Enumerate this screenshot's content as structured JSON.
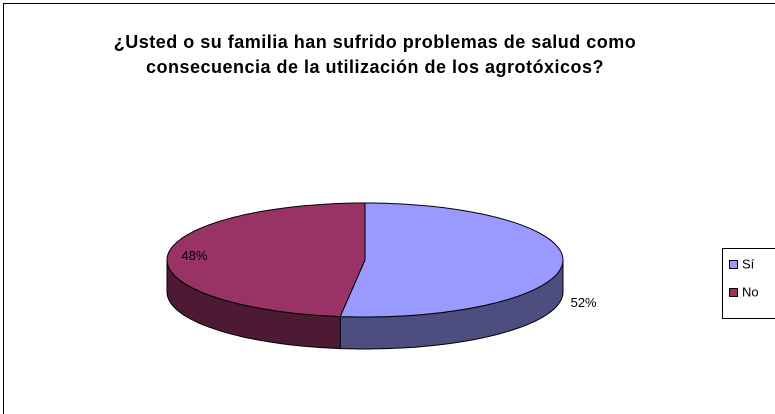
{
  "chart_data": {
    "type": "pie",
    "title": "¿Usted o su familia han sufrido problemas de salud como consecuencia de la utilización de los agrotóxicos?",
    "categories": [
      "Sí",
      "No"
    ],
    "values": [
      52,
      48
    ],
    "value_labels": [
      "52%",
      "48%"
    ],
    "colors": [
      "#9999ff",
      "#993366"
    ],
    "legend": "right"
  }
}
